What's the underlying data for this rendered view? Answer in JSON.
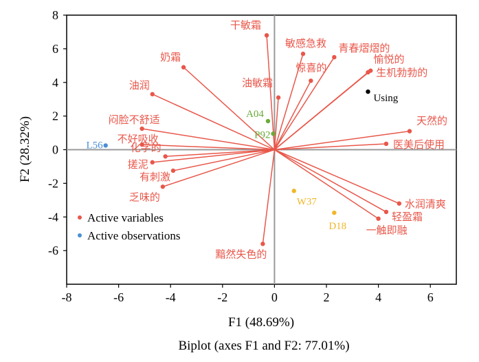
{
  "caption": "Biplot (axes F1 and F2: 77.01%)",
  "colors": {
    "variable": "#e8574a",
    "obs_blue": "#4a8fd4",
    "obs_green": "#6aaa3a",
    "obs_yellow": "#f0b62a",
    "obs_black": "#000000",
    "zero_line": "#999999"
  },
  "chart_data": {
    "type": "scatter",
    "title": "",
    "xlabel": "F1 (48.69%)",
    "ylabel": "F2 (28.32%)",
    "xlim": [
      -8,
      7
    ],
    "ylim": [
      -8,
      8
    ],
    "x_ticks": [
      -8,
      -6,
      -4,
      -2,
      0,
      2,
      4,
      6
    ],
    "y_ticks": [
      -6,
      -4,
      -2,
      0,
      2,
      4,
      6,
      8
    ],
    "grid": false,
    "legend": {
      "placement": "bottom-left",
      "entries": [
        "Active variables",
        "Active observations"
      ]
    },
    "variables": [
      {
        "label": "干敏霜",
        "x": -0.3,
        "y": 6.8
      },
      {
        "label": "敏感急救",
        "x": 1.1,
        "y": 5.7
      },
      {
        "label": "青春熠熠的",
        "x": 2.3,
        "y": 5.5
      },
      {
        "label": "惊喜的",
        "x": 1.4,
        "y": 4.1
      },
      {
        "label": "油敏霜",
        "x": 0.15,
        "y": 3.1
      },
      {
        "label": "愉悦的",
        "x": 3.6,
        "y": 4.6
      },
      {
        "label": "生机勃勃的",
        "x": 3.7,
        "y": 4.7
      },
      {
        "label": "奶霜",
        "x": -3.5,
        "y": 4.9
      },
      {
        "label": "油润",
        "x": -4.7,
        "y": 3.3
      },
      {
        "label": "闷脸不舒适",
        "x": -5.1,
        "y": 1.25
      },
      {
        "label": "不好吸收",
        "x": -5.1,
        "y": 0.3
      },
      {
        "label": "化学的",
        "x": -4.2,
        "y": -0.4
      },
      {
        "label": "搓泥",
        "x": -4.7,
        "y": -0.75
      },
      {
        "label": "有刺激",
        "x": -3.9,
        "y": -1.25
      },
      {
        "label": "乏味的",
        "x": -4.3,
        "y": -2.2
      },
      {
        "label": "天然的",
        "x": 5.2,
        "y": 1.1
      },
      {
        "label": "医美后使用",
        "x": 4.3,
        "y": 0.35
      },
      {
        "label": "水润清爽",
        "x": 4.8,
        "y": -3.2
      },
      {
        "label": "轻盈霜",
        "x": 4.3,
        "y": -3.7
      },
      {
        "label": "一触即融",
        "x": 4.0,
        "y": -4.1
      },
      {
        "label": "黯然失色的",
        "x": -0.45,
        "y": -5.6
      }
    ],
    "observations": [
      {
        "label": "L56",
        "x": -6.5,
        "y": 0.25,
        "color_key": "obs_blue"
      },
      {
        "label": "A04",
        "x": -0.25,
        "y": 1.7,
        "color_key": "obs_green"
      },
      {
        "label": "P92",
        "x": -0.05,
        "y": 0.95,
        "color_key": "obs_green"
      },
      {
        "label": "Using",
        "x": 3.6,
        "y": 3.45,
        "color_key": "obs_black"
      },
      {
        "label": "W37",
        "x": 0.75,
        "y": -2.45,
        "color_key": "obs_yellow"
      },
      {
        "label": "D18",
        "x": 2.3,
        "y": -3.75,
        "color_key": "obs_yellow"
      }
    ]
  }
}
